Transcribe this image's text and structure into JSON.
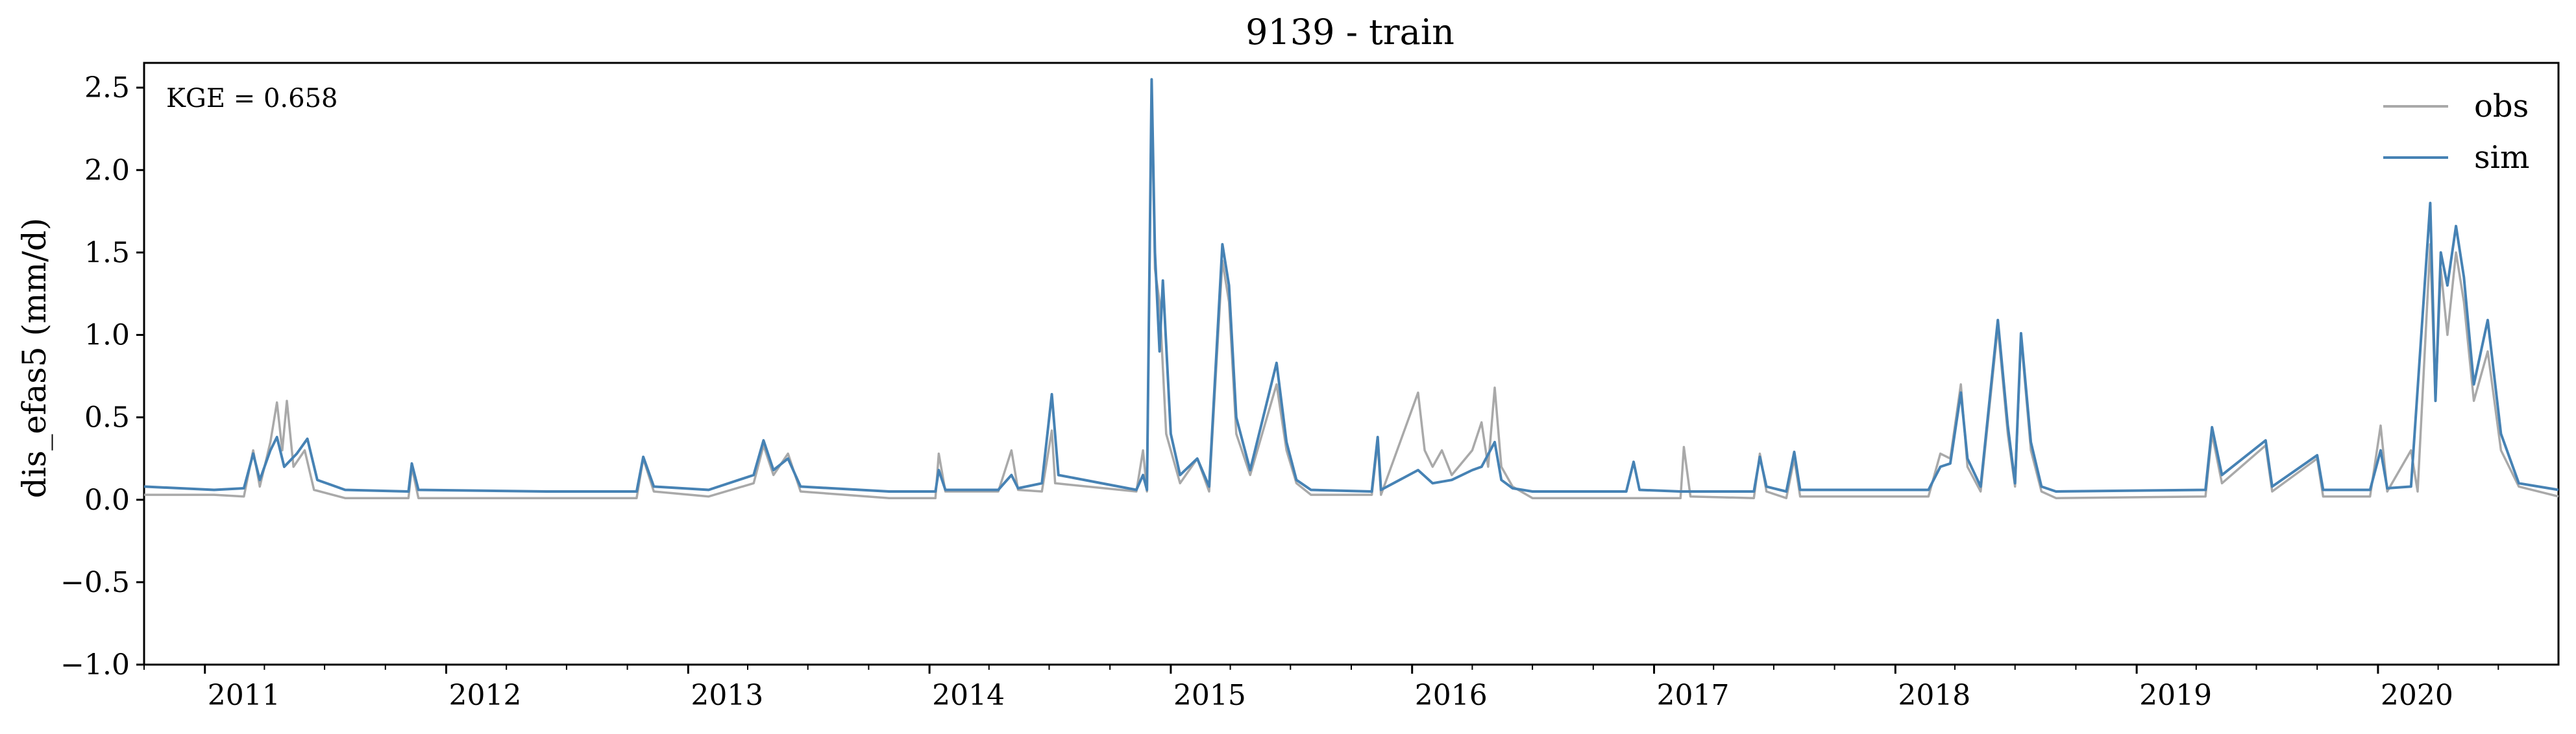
{
  "chart_data": {
    "type": "line",
    "title": "9139 - train",
    "xlabel": "",
    "ylabel": "dis_efas5 (mm/d)",
    "ylim": [
      -1.0,
      2.65
    ],
    "xlim": [
      "2010-10-01",
      "2020-09-30"
    ],
    "yticks": [
      "−1.0",
      "−0.5",
      "0.0",
      "0.5",
      "1.0",
      "1.5",
      "2.0",
      "2.5"
    ],
    "ytick_values": [
      -1.0,
      -0.5,
      0.0,
      0.5,
      1.0,
      1.5,
      2.0,
      2.5
    ],
    "xticks": [
      "2011",
      "2012",
      "2013",
      "2014",
      "2015",
      "2016",
      "2017",
      "2018",
      "2019",
      "2020"
    ],
    "xtick_dates": [
      "2011-01-01",
      "2012-01-01",
      "2013-01-01",
      "2014-01-01",
      "2015-01-01",
      "2016-01-01",
      "2017-01-01",
      "2018-01-01",
      "2019-01-01",
      "2020-01-01"
    ],
    "grid": false,
    "legend_position": "top-right",
    "annotation": "KGE = 0.658",
    "series": [
      {
        "name": "obs",
        "color": "#a9a9a9",
        "points": [
          [
            "2010-10-01",
            0.03
          ],
          [
            "2011-01-15",
            0.03
          ],
          [
            "2011-03-01",
            0.02
          ],
          [
            "2011-03-15",
            0.3
          ],
          [
            "2011-03-25",
            0.08
          ],
          [
            "2011-04-10",
            0.35
          ],
          [
            "2011-04-20",
            0.59
          ],
          [
            "2011-04-28",
            0.3
          ],
          [
            "2011-05-05",
            0.6
          ],
          [
            "2011-05-15",
            0.2
          ],
          [
            "2011-06-01",
            0.3
          ],
          [
            "2011-06-15",
            0.06
          ],
          [
            "2011-08-01",
            0.01
          ],
          [
            "2011-11-05",
            0.01
          ],
          [
            "2011-11-10",
            0.2
          ],
          [
            "2011-11-20",
            0.01
          ],
          [
            "2012-06-01",
            0.01
          ],
          [
            "2012-10-15",
            0.01
          ],
          [
            "2012-10-25",
            0.25
          ],
          [
            "2012-11-10",
            0.05
          ],
          [
            "2013-02-01",
            0.02
          ],
          [
            "2013-04-10",
            0.1
          ],
          [
            "2013-04-25",
            0.33
          ],
          [
            "2013-05-10",
            0.15
          ],
          [
            "2013-06-01",
            0.28
          ],
          [
            "2013-06-20",
            0.05
          ],
          [
            "2013-11-01",
            0.01
          ],
          [
            "2014-01-10",
            0.01
          ],
          [
            "2014-01-15",
            0.28
          ],
          [
            "2014-01-25",
            0.05
          ],
          [
            "2014-04-15",
            0.05
          ],
          [
            "2014-05-05",
            0.3
          ],
          [
            "2014-05-15",
            0.06
          ],
          [
            "2014-06-20",
            0.05
          ],
          [
            "2014-07-05",
            0.42
          ],
          [
            "2014-07-10",
            0.1
          ],
          [
            "2014-11-10",
            0.05
          ],
          [
            "2014-11-20",
            0.3
          ],
          [
            "2014-11-26",
            0.05
          ],
          [
            "2014-12-03",
            2.5
          ],
          [
            "2014-12-08",
            1.4
          ],
          [
            "2014-12-15",
            1.2
          ],
          [
            "2014-12-25",
            0.4
          ],
          [
            "2015-01-15",
            0.1
          ],
          [
            "2015-02-10",
            0.25
          ],
          [
            "2015-02-28",
            0.05
          ],
          [
            "2015-03-20",
            1.45
          ],
          [
            "2015-03-30",
            1.2
          ],
          [
            "2015-04-10",
            0.4
          ],
          [
            "2015-05-01",
            0.15
          ],
          [
            "2015-06-10",
            0.7
          ],
          [
            "2015-06-25",
            0.3
          ],
          [
            "2015-07-10",
            0.1
          ],
          [
            "2015-08-01",
            0.03
          ],
          [
            "2015-11-01",
            0.03
          ],
          [
            "2015-11-10",
            0.35
          ],
          [
            "2015-11-15",
            0.03
          ],
          [
            "2016-01-10",
            0.65
          ],
          [
            "2016-01-20",
            0.3
          ],
          [
            "2016-02-01",
            0.2
          ],
          [
            "2016-02-15",
            0.3
          ],
          [
            "2016-03-01",
            0.15
          ],
          [
            "2016-04-01",
            0.3
          ],
          [
            "2016-04-15",
            0.47
          ],
          [
            "2016-04-25",
            0.2
          ],
          [
            "2016-05-05",
            0.68
          ],
          [
            "2016-05-15",
            0.2
          ],
          [
            "2016-06-01",
            0.08
          ],
          [
            "2016-07-01",
            0.01
          ],
          [
            "2017-02-10",
            0.01
          ],
          [
            "2017-02-15",
            0.32
          ],
          [
            "2017-02-25",
            0.02
          ],
          [
            "2017-06-01",
            0.01
          ],
          [
            "2017-06-10",
            0.28
          ],
          [
            "2017-06-20",
            0.05
          ],
          [
            "2017-07-20",
            0.01
          ],
          [
            "2017-08-01",
            0.25
          ],
          [
            "2017-08-10",
            0.02
          ],
          [
            "2018-02-20",
            0.02
          ],
          [
            "2018-03-10",
            0.28
          ],
          [
            "2018-03-25",
            0.25
          ],
          [
            "2018-04-10",
            0.7
          ],
          [
            "2018-04-20",
            0.2
          ],
          [
            "2018-05-10",
            0.05
          ],
          [
            "2018-06-05",
            1.05
          ],
          [
            "2018-06-20",
            0.4
          ],
          [
            "2018-07-01",
            0.08
          ],
          [
            "2018-07-10",
            0.99
          ],
          [
            "2018-07-25",
            0.3
          ],
          [
            "2018-08-10",
            0.05
          ],
          [
            "2018-09-01",
            0.01
          ],
          [
            "2019-04-15",
            0.02
          ],
          [
            "2019-04-25",
            0.4
          ],
          [
            "2019-05-10",
            0.1
          ],
          [
            "2019-07-15",
            0.33
          ],
          [
            "2019-07-25",
            0.05
          ],
          [
            "2019-10-01",
            0.25
          ],
          [
            "2019-10-10",
            0.02
          ],
          [
            "2019-12-20",
            0.02
          ],
          [
            "2020-01-05",
            0.45
          ],
          [
            "2020-01-15",
            0.05
          ],
          [
            "2020-02-20",
            0.3
          ],
          [
            "2020-03-01",
            0.05
          ],
          [
            "2020-03-20",
            1.55
          ],
          [
            "2020-03-28",
            0.6
          ],
          [
            "2020-04-05",
            1.4
          ],
          [
            "2020-04-15",
            1.0
          ],
          [
            "2020-04-28",
            1.5
          ],
          [
            "2020-05-10",
            1.2
          ],
          [
            "2020-05-25",
            0.6
          ],
          [
            "2020-06-15",
            0.9
          ],
          [
            "2020-07-05",
            0.3
          ],
          [
            "2020-08-01",
            0.08
          ],
          [
            "2020-09-30",
            0.02
          ]
        ]
      },
      {
        "name": "sim",
        "color": "#4682b4",
        "points": [
          [
            "2010-10-01",
            0.08
          ],
          [
            "2011-01-15",
            0.06
          ],
          [
            "2011-03-01",
            0.07
          ],
          [
            "2011-03-15",
            0.28
          ],
          [
            "2011-03-25",
            0.12
          ],
          [
            "2011-04-10",
            0.3
          ],
          [
            "2011-04-20",
            0.38
          ],
          [
            "2011-05-01",
            0.2
          ],
          [
            "2011-05-20",
            0.28
          ],
          [
            "2011-06-05",
            0.37
          ],
          [
            "2011-06-20",
            0.12
          ],
          [
            "2011-08-01",
            0.06
          ],
          [
            "2011-11-05",
            0.05
          ],
          [
            "2011-11-10",
            0.22
          ],
          [
            "2011-11-20",
            0.06
          ],
          [
            "2012-06-01",
            0.05
          ],
          [
            "2012-10-15",
            0.05
          ],
          [
            "2012-10-25",
            0.26
          ],
          [
            "2012-11-10",
            0.08
          ],
          [
            "2013-02-01",
            0.06
          ],
          [
            "2013-04-10",
            0.15
          ],
          [
            "2013-04-25",
            0.36
          ],
          [
            "2013-05-10",
            0.18
          ],
          [
            "2013-06-01",
            0.25
          ],
          [
            "2013-06-20",
            0.08
          ],
          [
            "2013-11-01",
            0.05
          ],
          [
            "2014-01-10",
            0.05
          ],
          [
            "2014-01-15",
            0.18
          ],
          [
            "2014-01-25",
            0.06
          ],
          [
            "2014-04-15",
            0.06
          ],
          [
            "2014-05-05",
            0.15
          ],
          [
            "2014-05-15",
            0.07
          ],
          [
            "2014-06-20",
            0.1
          ],
          [
            "2014-07-05",
            0.64
          ],
          [
            "2014-07-15",
            0.15
          ],
          [
            "2014-11-10",
            0.06
          ],
          [
            "2014-11-20",
            0.15
          ],
          [
            "2014-11-26",
            0.06
          ],
          [
            "2014-12-03",
            2.55
          ],
          [
            "2014-12-08",
            1.5
          ],
          [
            "2014-12-15",
            0.9
          ],
          [
            "2014-12-20",
            1.33
          ],
          [
            "2015-01-01",
            0.4
          ],
          [
            "2015-01-15",
            0.15
          ],
          [
            "2015-02-10",
            0.25
          ],
          [
            "2015-02-28",
            0.08
          ],
          [
            "2015-03-20",
            1.55
          ],
          [
            "2015-03-30",
            1.3
          ],
          [
            "2015-04-10",
            0.5
          ],
          [
            "2015-05-01",
            0.18
          ],
          [
            "2015-06-10",
            0.83
          ],
          [
            "2015-06-25",
            0.35
          ],
          [
            "2015-07-10",
            0.12
          ],
          [
            "2015-08-01",
            0.06
          ],
          [
            "2015-11-01",
            0.05
          ],
          [
            "2015-11-10",
            0.38
          ],
          [
            "2015-11-15",
            0.06
          ],
          [
            "2016-01-10",
            0.18
          ],
          [
            "2016-02-01",
            0.1
          ],
          [
            "2016-03-01",
            0.12
          ],
          [
            "2016-04-01",
            0.18
          ],
          [
            "2016-04-15",
            0.2
          ],
          [
            "2016-05-05",
            0.35
          ],
          [
            "2016-05-15",
            0.12
          ],
          [
            "2016-06-01",
            0.07
          ],
          [
            "2016-07-01",
            0.05
          ],
          [
            "2016-11-20",
            0.05
          ],
          [
            "2016-12-01",
            0.23
          ],
          [
            "2016-12-10",
            0.06
          ],
          [
            "2017-02-10",
            0.05
          ],
          [
            "2017-06-01",
            0.05
          ],
          [
            "2017-06-10",
            0.26
          ],
          [
            "2017-06-20",
            0.08
          ],
          [
            "2017-07-20",
            0.05
          ],
          [
            "2017-08-01",
            0.29
          ],
          [
            "2017-08-10",
            0.06
          ],
          [
            "2018-02-20",
            0.06
          ],
          [
            "2018-03-10",
            0.2
          ],
          [
            "2018-03-25",
            0.22
          ],
          [
            "2018-04-10",
            0.65
          ],
          [
            "2018-04-20",
            0.25
          ],
          [
            "2018-05-10",
            0.08
          ],
          [
            "2018-06-05",
            1.09
          ],
          [
            "2018-06-20",
            0.45
          ],
          [
            "2018-07-01",
            0.1
          ],
          [
            "2018-07-10",
            1.01
          ],
          [
            "2018-07-25",
            0.35
          ],
          [
            "2018-08-10",
            0.08
          ],
          [
            "2018-09-01",
            0.05
          ],
          [
            "2019-04-15",
            0.06
          ],
          [
            "2019-04-25",
            0.44
          ],
          [
            "2019-05-10",
            0.15
          ],
          [
            "2019-07-15",
            0.36
          ],
          [
            "2019-07-25",
            0.08
          ],
          [
            "2019-10-01",
            0.27
          ],
          [
            "2019-10-10",
            0.06
          ],
          [
            "2019-12-20",
            0.06
          ],
          [
            "2020-01-05",
            0.3
          ],
          [
            "2020-01-15",
            0.07
          ],
          [
            "2020-02-20",
            0.08
          ],
          [
            "2020-03-20",
            1.8
          ],
          [
            "2020-03-28",
            0.6
          ],
          [
            "2020-04-05",
            1.5
          ],
          [
            "2020-04-15",
            1.3
          ],
          [
            "2020-04-28",
            1.66
          ],
          [
            "2020-05-10",
            1.35
          ],
          [
            "2020-05-25",
            0.7
          ],
          [
            "2020-06-15",
            1.09
          ],
          [
            "2020-07-05",
            0.4
          ],
          [
            "2020-08-01",
            0.1
          ],
          [
            "2020-09-30",
            0.06
          ]
        ]
      }
    ]
  }
}
